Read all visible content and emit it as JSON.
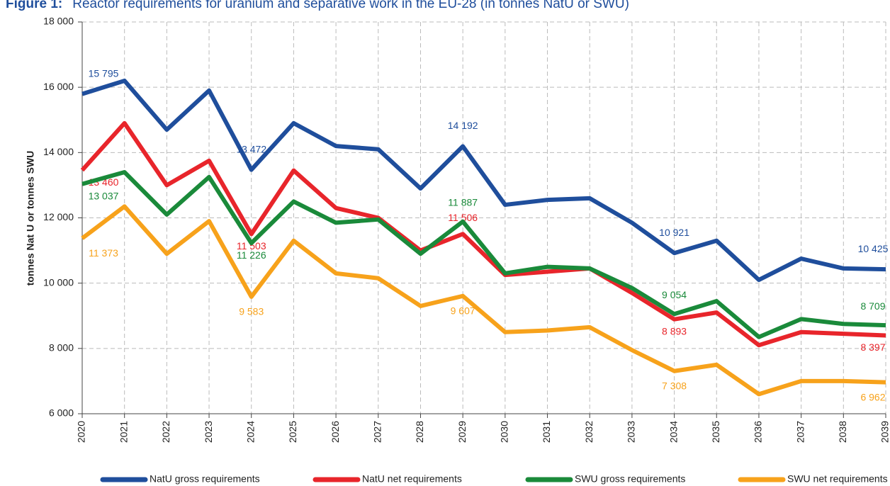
{
  "chart_data": {
    "type": "line",
    "figure_label": "Figure 1:",
    "title": "Reactor requirements for uranium and separative work in the EU-28 (in tonnes NatU or SWU)",
    "y_label": "tonnes Nat U or tonnes SWU",
    "categories": [
      "2020",
      "2021",
      "2022",
      "2023",
      "2024",
      "2025",
      "2026",
      "2027",
      "2028",
      "2029",
      "2030",
      "2031",
      "2032",
      "2033",
      "2034",
      "2035",
      "2036",
      "2037",
      "2038",
      "2039"
    ],
    "series": [
      {
        "name": "NatU gross requirements",
        "color": "#1f4e9c",
        "values": [
          15795,
          16200,
          14700,
          15900,
          13472,
          14900,
          14200,
          14100,
          12900,
          14192,
          12400,
          12550,
          12600,
          11850,
          10921,
          11300,
          10100,
          10750,
          10450,
          10425
        ],
        "value_labels": [
          "15 795",
          null,
          null,
          null,
          "13 472",
          null,
          null,
          null,
          null,
          "14 192",
          null,
          null,
          null,
          null,
          "10 921",
          null,
          null,
          null,
          null,
          "10 425"
        ]
      },
      {
        "name": "NatU net requirements",
        "color": "#e8252b",
        "values": [
          13460,
          14900,
          13000,
          13750,
          11503,
          13450,
          12300,
          12000,
          11000,
          11506,
          10250,
          10350,
          10450,
          9700,
          8893,
          9100,
          8100,
          8500,
          8450,
          8397
        ],
        "value_labels": [
          "13 460",
          null,
          null,
          null,
          "11 503",
          null,
          null,
          null,
          null,
          "11 506",
          null,
          null,
          null,
          null,
          "8 893",
          null,
          null,
          null,
          null,
          "8 397"
        ]
      },
      {
        "name": "SWU gross requirements",
        "color": "#1a8a3a",
        "values": [
          13037,
          13400,
          12100,
          13250,
          11226,
          12500,
          11850,
          11950,
          10900,
          11887,
          10300,
          10500,
          10450,
          9850,
          9054,
          9450,
          8350,
          8900,
          8750,
          8709
        ],
        "value_labels": [
          "13 037",
          null,
          null,
          null,
          "11 226",
          null,
          null,
          null,
          null,
          "11 887",
          null,
          null,
          null,
          null,
          "9 054",
          null,
          null,
          null,
          null,
          "8 709"
        ]
      },
      {
        "name": "SWU net requirements",
        "color": "#f7a21b",
        "values": [
          11373,
          12350,
          10900,
          11900,
          9583,
          11300,
          10300,
          10150,
          9300,
          9607,
          8500,
          8550,
          8650,
          7950,
          7308,
          7500,
          6600,
          7000,
          7000,
          6962
        ],
        "value_labels": [
          "11 373",
          null,
          null,
          null,
          "9 583",
          null,
          null,
          null,
          null,
          "9 607",
          null,
          null,
          null,
          null,
          "7 308",
          null,
          null,
          null,
          null,
          "6 962"
        ]
      }
    ],
    "ylim": [
      6000,
      18000
    ],
    "yticks": [
      {
        "value": 6000,
        "label": "6 000"
      },
      {
        "value": 8000,
        "label": "8 000"
      },
      {
        "value": 10000,
        "label": "10 000"
      },
      {
        "value": 12000,
        "label": "12 000"
      },
      {
        "value": 14000,
        "label": "14 000"
      },
      {
        "value": 16000,
        "label": "16 000"
      },
      {
        "value": 18000,
        "label": "18 000"
      }
    ],
    "grid": true,
    "legend": "bottom"
  }
}
